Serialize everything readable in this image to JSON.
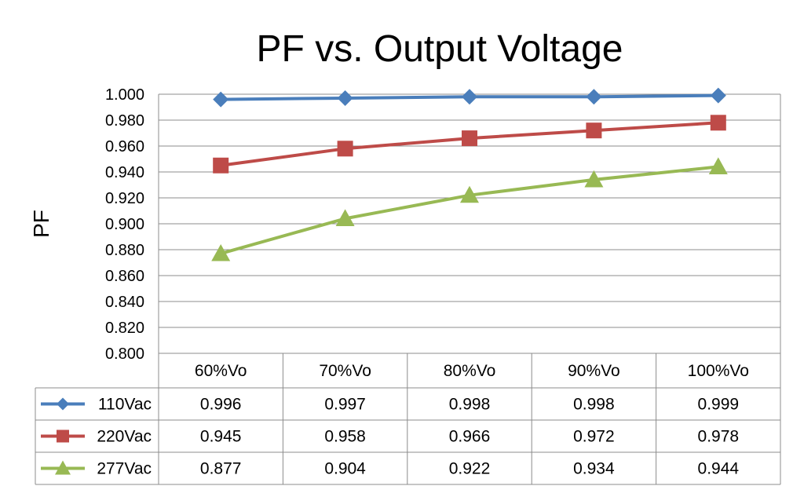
{
  "chart_data": {
    "type": "line",
    "title": "PF vs. Output Voltage",
    "xlabel": "",
    "ylabel": "PF",
    "categories": [
      "60%Vo",
      "70%Vo",
      "80%Vo",
      "90%Vo",
      "100%Vo"
    ],
    "ylim": [
      0.8,
      1.0
    ],
    "yticks": [
      "1.000",
      "0.980",
      "0.960",
      "0.940",
      "0.920",
      "0.900",
      "0.880",
      "0.860",
      "0.840",
      "0.820",
      "0.800"
    ],
    "grid": true,
    "legend": "data-table",
    "series": [
      {
        "name": "110Vac",
        "color": "#4a7ebb",
        "marker": "diamond",
        "values": [
          0.996,
          0.997,
          0.998,
          0.998,
          0.999
        ],
        "labels": [
          "0.996",
          "0.997",
          "0.998",
          "0.998",
          "0.999"
        ]
      },
      {
        "name": "220Vac",
        "color": "#be4b48",
        "marker": "square",
        "values": [
          0.945,
          0.958,
          0.966,
          0.972,
          0.978
        ],
        "labels": [
          "0.945",
          "0.958",
          "0.966",
          "0.972",
          "0.978"
        ]
      },
      {
        "name": "277Vac",
        "color": "#98b954",
        "marker": "triangle",
        "values": [
          0.877,
          0.904,
          0.922,
          0.934,
          0.944
        ],
        "labels": [
          "0.877",
          "0.904",
          "0.922",
          "0.934",
          "0.944"
        ]
      }
    ]
  }
}
